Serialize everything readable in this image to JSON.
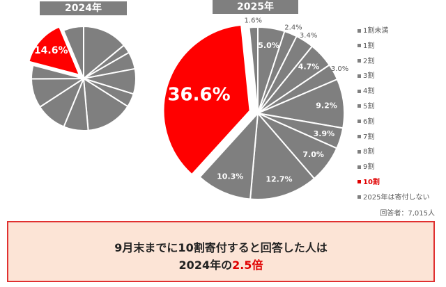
{
  "chart_data": [
    {
      "type": "pie",
      "title": "2024年",
      "start": "top",
      "direction": "clockwise",
      "values": [
        14.0,
        2.7,
        5.3,
        7.8,
        4.2,
        14.6,
        7.6,
        9.6,
        9.1,
        4.2,
        14.6,
        6.3
      ],
      "labels": [
        "",
        "",
        "",
        "",
        "",
        "",
        "",
        "",
        "",
        "",
        "14.6%",
        ""
      ],
      "highlight_index": 10
    },
    {
      "type": "pie",
      "title": "2025年",
      "start": "top",
      "direction": "clockwise",
      "values": [
        5.0,
        2.4,
        3.4,
        4.7,
        3.0,
        9.2,
        3.9,
        7.0,
        12.7,
        10.3,
        36.6,
        1.6
      ],
      "labels": [
        "5.0%",
        "2.4%",
        "3.4%",
        "4.7%",
        "3.0%",
        "9.2%",
        "3.9%",
        "7.0%",
        "12.7%",
        "10.3%",
        "36.6%",
        "1.6%"
      ],
      "highlight_index": 10
    }
  ],
  "legend": [
    "1割未満",
    "1割",
    "2割",
    "3割",
    "4割",
    "5割",
    "6割",
    "7割",
    "8割",
    "9割",
    "10割",
    "2025年は寄付しない"
  ],
  "colors": {
    "gray": "#7f7f7f",
    "highlight": "#ff0000"
  },
  "note": "回答者：7,015人",
  "summary": {
    "line1": "9月末までに10割寄付すると回答した人は",
    "line2_prefix": "2024年の",
    "line2_highlight": "2.5倍"
  }
}
